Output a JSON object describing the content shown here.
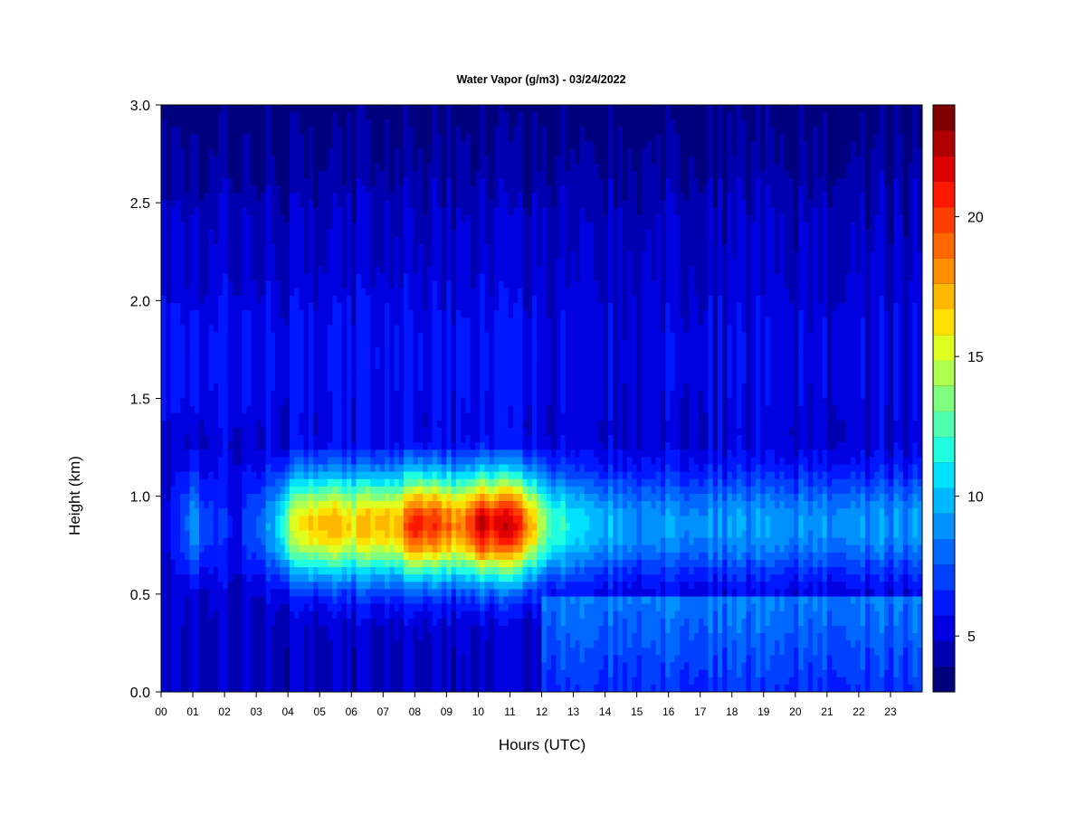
{
  "chart_data": {
    "type": "heatmap",
    "title": "Water Vapor (g/m3) - 03/24/2022",
    "xlabel": "Hours (UTC)",
    "ylabel": "Height (km)",
    "xlim": [
      0,
      24
    ],
    "ylim": [
      0,
      3
    ],
    "x_ticks": [
      {
        "value": 0,
        "label": "00"
      },
      {
        "value": 1,
        "label": "01"
      },
      {
        "value": 2,
        "label": "02"
      },
      {
        "value": 3,
        "label": "03"
      },
      {
        "value": 4,
        "label": "04"
      },
      {
        "value": 5,
        "label": "05"
      },
      {
        "value": 6,
        "label": "06"
      },
      {
        "value": 7,
        "label": "07"
      },
      {
        "value": 8,
        "label": "08"
      },
      {
        "value": 9,
        "label": "09"
      },
      {
        "value": 10,
        "label": "10"
      },
      {
        "value": 11,
        "label": "11"
      },
      {
        "value": 12,
        "label": "12"
      },
      {
        "value": 13,
        "label": "13"
      },
      {
        "value": 14,
        "label": "14"
      },
      {
        "value": 15,
        "label": "15"
      },
      {
        "value": 16,
        "label": "16"
      },
      {
        "value": 17,
        "label": "17"
      },
      {
        "value": 18,
        "label": "18"
      },
      {
        "value": 19,
        "label": "19"
      },
      {
        "value": 20,
        "label": "20"
      },
      {
        "value": 21,
        "label": "21"
      },
      {
        "value": 22,
        "label": "22"
      },
      {
        "value": 23,
        "label": "23"
      }
    ],
    "y_ticks": [
      {
        "value": 0.0,
        "label": "0.0"
      },
      {
        "value": 0.5,
        "label": "0.5"
      },
      {
        "value": 1.0,
        "label": "1.0"
      },
      {
        "value": 1.5,
        "label": "1.5"
      },
      {
        "value": 2.0,
        "label": "2.0"
      },
      {
        "value": 2.5,
        "label": "2.5"
      },
      {
        "value": 3.0,
        "label": "3.0"
      }
    ],
    "colorbar": {
      "min": 3,
      "max": 24,
      "levels": 21,
      "tick_values": [
        5,
        10,
        15,
        20
      ],
      "tick_labels": [
        "5",
        "10",
        "15",
        "20"
      ],
      "colors": [
        "#00007f",
        "#0000b0",
        "#0000e0",
        "#0018ff",
        "#0040ff",
        "#0068ff",
        "#0090ff",
        "#00b8ff",
        "#00e0ff",
        "#20ffdf",
        "#50ffaf",
        "#80ff7f",
        "#afff50",
        "#dfff20",
        "#ffe000",
        "#ffb800",
        "#ff8f00",
        "#ff6800",
        "#ff4000",
        "#ff1800",
        "#df0000",
        "#af0000",
        "#7f0000"
      ]
    },
    "series": [
      {
        "description_of_field": "water vapor density",
        "x_hours": [
          0,
          0.5,
          1,
          1.5,
          2,
          2.5,
          3,
          3.5,
          4,
          4.5,
          5,
          5.5,
          6,
          6.5,
          7,
          7.5,
          8,
          8.5,
          9,
          9.5,
          10,
          10.5,
          11,
          11.5,
          12,
          12.5,
          13,
          13.5,
          14,
          15,
          16,
          17,
          18,
          19,
          20,
          21,
          22,
          23,
          23.8
        ],
        "peak_values_near_1km": [
          5,
          6,
          9,
          7,
          6,
          6,
          8,
          9,
          14,
          16,
          17,
          17,
          16,
          17,
          17,
          17,
          21,
          20,
          19,
          18,
          22,
          21,
          22,
          19,
          14,
          12,
          11,
          10,
          10,
          9,
          9,
          9,
          9,
          9,
          9,
          9,
          9,
          9,
          9
        ],
        "peak_height_km": 0.85
      }
    ]
  }
}
